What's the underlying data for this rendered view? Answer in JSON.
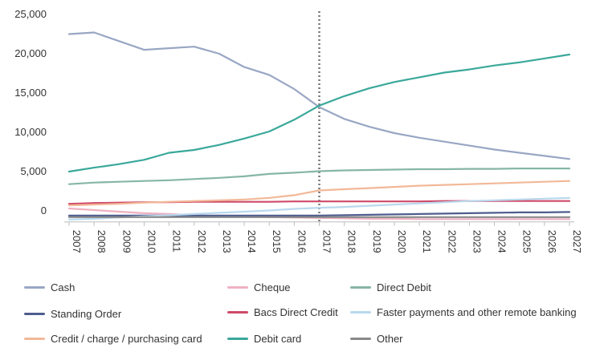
{
  "chart_data": {
    "type": "line",
    "x": [
      "2007",
      "2008",
      "2009",
      "2010",
      "2011",
      "2012",
      "2013",
      "2014",
      "2015",
      "2016",
      "2017",
      "2018",
      "2019",
      "2020",
      "2021",
      "2022",
      "2023",
      "2024",
      "2025",
      "2026",
      "2027"
    ],
    "y_ticks": [
      "25,000",
      "20,000",
      "15,000",
      "10,000",
      "5,000",
      "0"
    ],
    "ylim": [
      -1500,
      25000
    ],
    "marker_x": "2017",
    "grid": false,
    "legend_position": "bottom",
    "series": [
      {
        "name": "Cash",
        "color": "#99a7c4",
        "values": [
          22400,
          22600,
          21500,
          20400,
          20600,
          20800,
          19900,
          18200,
          17200,
          15400,
          13100,
          11600,
          10600,
          9800,
          9200,
          8700,
          8200,
          7700,
          7300,
          6900,
          6500
        ]
      },
      {
        "name": "Cheque",
        "color": "#eeb1c2",
        "values": [
          200,
          0,
          -200,
          -400,
          -500,
          -650,
          -800,
          -850,
          -900,
          -950,
          -1000,
          -1050,
          -1100,
          -1100,
          -1150,
          -1150,
          -1150,
          -1150,
          -1150,
          -1150,
          -1150
        ]
      },
      {
        "name": "Direct Debit",
        "color": "#86b6a6",
        "values": [
          3300,
          3500,
          3600,
          3700,
          3800,
          3950,
          4100,
          4300,
          4600,
          4750,
          4950,
          5050,
          5100,
          5150,
          5200,
          5200,
          5250,
          5250,
          5300,
          5300,
          5300
        ]
      },
      {
        "name": "Standing Order",
        "color": "#4e5d8e",
        "values": [
          -700,
          -700,
          -700,
          -700,
          -700,
          -700,
          -700,
          -700,
          -700,
          -700,
          -700,
          -650,
          -600,
          -550,
          -500,
          -450,
          -400,
          -350,
          -300,
          -300,
          -250
        ]
      },
      {
        "name": "Bacs Direct Credit",
        "color": "#cf4a69",
        "values": [
          800,
          900,
          950,
          1000,
          1000,
          1050,
          1050,
          1050,
          1050,
          1100,
          1100,
          1100,
          1100,
          1100,
          1100,
          1150,
          1150,
          1150,
          1150,
          1150,
          1150
        ]
      },
      {
        "name": "Faster payments and other remote banking",
        "color": "#b9d9ee",
        "values": [
          -1200,
          -1100,
          -950,
          -800,
          -650,
          -500,
          -350,
          -200,
          -50,
          150,
          300,
          400,
          550,
          700,
          850,
          1000,
          1150,
          1250,
          1350,
          1450,
          1550
        ]
      },
      {
        "name": "Credit / charge / purchasing card",
        "color": "#f2b898",
        "values": [
          600,
          700,
          800,
          950,
          1050,
          1150,
          1250,
          1350,
          1550,
          1900,
          2500,
          2650,
          2800,
          2950,
          3100,
          3200,
          3300,
          3400,
          3500,
          3600,
          3700
        ]
      },
      {
        "name": "Debit card",
        "color": "#3aa89a",
        "values": [
          4900,
          5400,
          5850,
          6400,
          7300,
          7650,
          8300,
          9100,
          10000,
          11500,
          13300,
          14500,
          15500,
          16300,
          16900,
          17500,
          17900,
          18400,
          18800,
          19300,
          19800
        ]
      },
      {
        "name": "Other",
        "color": "#8a8a8a",
        "values": [
          -900,
          -900,
          -900,
          -900,
          -900,
          -900,
          -900,
          -900,
          -900,
          -900,
          -900,
          -900,
          -900,
          -900,
          -900,
          -900,
          -900,
          -900,
          -900,
          -900,
          -900
        ]
      }
    ]
  },
  "legend": [
    {
      "label": "Cash",
      "color": "#99a7c4"
    },
    {
      "label": "Cheque",
      "color": "#eeb1c2"
    },
    {
      "label": "Direct Debit",
      "color": "#86b6a6"
    },
    {
      "label": "Standing Order",
      "color": "#4e5d8e"
    },
    {
      "label": "Bacs Direct Credit",
      "color": "#cf4a69"
    },
    {
      "label": "Faster payments and other remote banking",
      "color": "#b9d9ee"
    },
    {
      "label": "Credit / charge / purchasing card",
      "color": "#f2b898"
    },
    {
      "label": "Debit card",
      "color": "#3aa89a"
    },
    {
      "label": "Other",
      "color": "#8a8a8a"
    }
  ]
}
